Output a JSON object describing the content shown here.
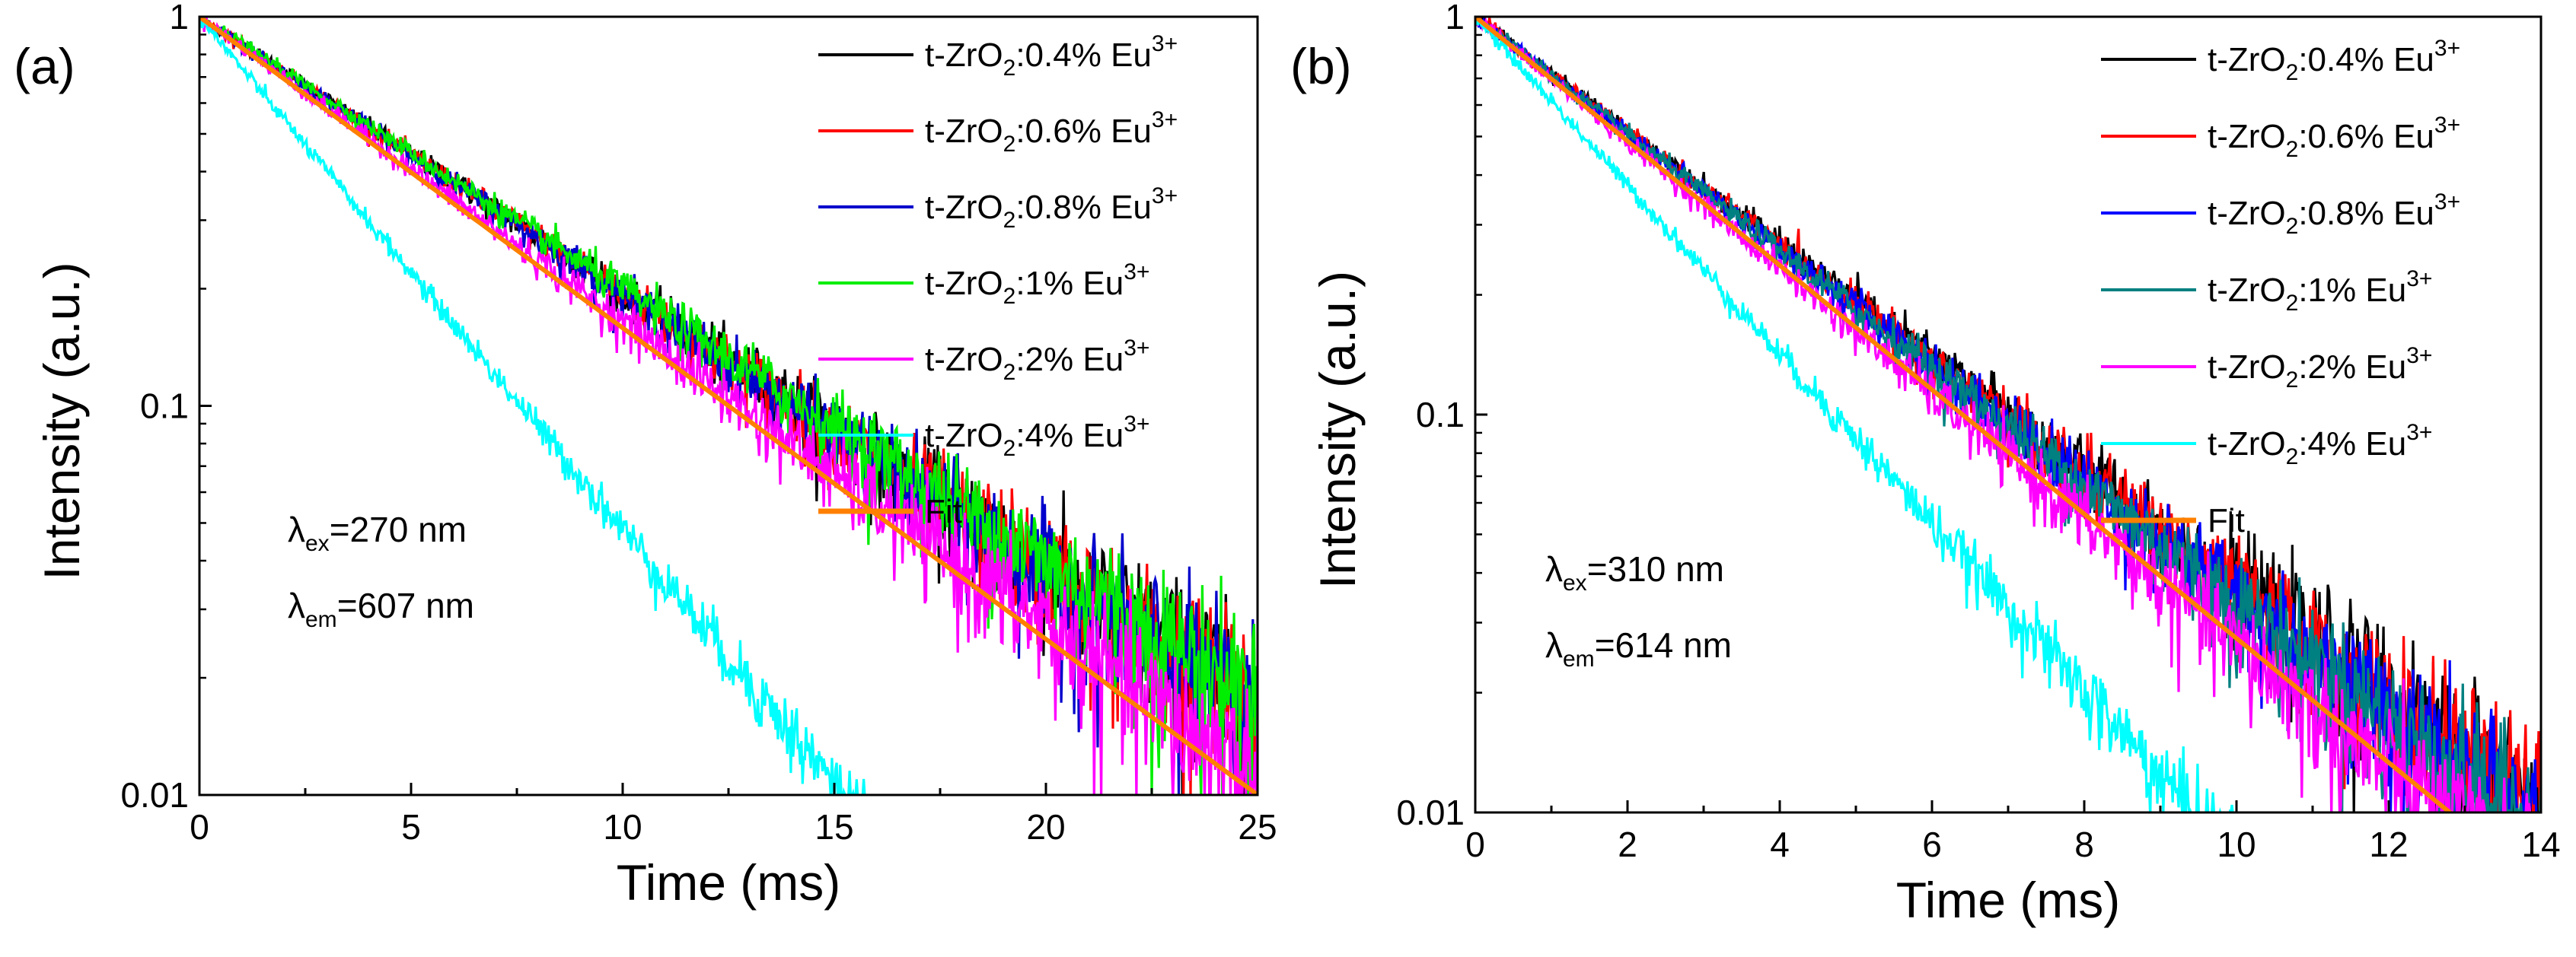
{
  "chart_data": [
    {
      "panel_label": "(a)",
      "type": "line",
      "xlabel": "Time (ms)",
      "ylabel": "Intensity (a.u.)",
      "xlim": [
        0,
        25
      ],
      "ylim": [
        0.01,
        1
      ],
      "yscale": "log",
      "xticks": [
        0,
        5,
        10,
        15,
        20,
        25
      ],
      "yticks": [
        {
          "value": 0.01,
          "label": "0.01"
        },
        {
          "value": 0.1,
          "label": "0.1"
        },
        {
          "value": 1,
          "label": "1"
        }
      ],
      "legend_placement": "top-right",
      "series": [
        {
          "prefix": "t-ZrO",
          "sub": "2",
          "mid": ":0.4% Eu",
          "sup": "3+",
          "color": "#000000",
          "tau": 6.15,
          "tail": 0.0
        },
        {
          "prefix": "t-ZrO",
          "sub": "2",
          "mid": ":0.6% Eu",
          "sup": "3+",
          "color": "#ff0000",
          "tau": 6.12,
          "tail": 0.0
        },
        {
          "prefix": "t-ZrO",
          "sub": "2",
          "mid": ":0.8% Eu",
          "sup": "3+",
          "color": "#0000cc",
          "tau": 6.1,
          "tail": 0.0
        },
        {
          "prefix": "t-ZrO",
          "sub": "2",
          "mid": ":1% Eu",
          "sup": "3+",
          "color": "#00ee00",
          "tau": 6.2,
          "tail": 0.0
        },
        {
          "prefix": "t-ZrO",
          "sub": "2",
          "mid": ":2% Eu",
          "sup": "3+",
          "color": "#ff00ff",
          "tau": 5.55,
          "tail": 0.0
        },
        {
          "prefix": "t-ZrO",
          "sub": "2",
          "mid": ":4% Eu",
          "sup": "3+",
          "color": "#00ffff",
          "tau": 3.3,
          "tail": 0.0
        },
        {
          "name": "Fit",
          "color": "#ff8000",
          "tau": 5.43,
          "fit": true
        }
      ],
      "annotations": [
        {
          "sym": "λ",
          "sub": "ex",
          "text": "=270 nm"
        },
        {
          "sym": "λ",
          "sub": "em",
          "text": "=607 nm"
        }
      ]
    },
    {
      "panel_label": "(b)",
      "type": "line",
      "xlabel": "Time (ms)",
      "ylabel": "Intensity (a.u.)",
      "xlim": [
        0,
        14
      ],
      "ylim": [
        0.01,
        1
      ],
      "yscale": "log",
      "xticks": [
        0,
        2,
        4,
        6,
        8,
        10,
        12,
        14
      ],
      "yticks": [
        {
          "value": 0.01,
          "label": "0.01"
        },
        {
          "value": 0.1,
          "label": "0.1"
        },
        {
          "value": 1,
          "label": "1"
        }
      ],
      "legend_placement": "top-right",
      "series": [
        {
          "prefix": "t-ZrO",
          "sub": "2",
          "mid": ":0.4% Eu",
          "sup": "3+",
          "color": "#000000",
          "tau": 3.05
        },
        {
          "prefix": "t-ZrO",
          "sub": "2",
          "mid": ":0.6% Eu",
          "sup": "3+",
          "color": "#ff0000",
          "tau": 3.02
        },
        {
          "prefix": "t-ZrO",
          "sub": "2",
          "mid": ":0.8% Eu",
          "sup": "3+",
          "color": "#0000ff",
          "tau": 2.98
        },
        {
          "prefix": "t-ZrO",
          "sub": "2",
          "mid": ":1% Eu",
          "sup": "3+",
          "color": "#008080",
          "tau": 2.95
        },
        {
          "prefix": "t-ZrO",
          "sub": "2",
          "mid": ":2% Eu",
          "sup": "3+",
          "color": "#ff00ff",
          "tau": 2.75
        },
        {
          "prefix": "t-ZrO",
          "sub": "2",
          "mid": ":4% Eu",
          "sup": "3+",
          "color": "#00ffff",
          "tau": 2.05
        },
        {
          "name": "Fit",
          "color": "#ff8000",
          "tau": 2.78,
          "fit": true
        }
      ],
      "annotations": [
        {
          "sym": "λ",
          "sub": "ex",
          "text": "=310 nm"
        },
        {
          "sym": "λ",
          "sub": "em",
          "text": "=614 nm"
        }
      ]
    }
  ]
}
